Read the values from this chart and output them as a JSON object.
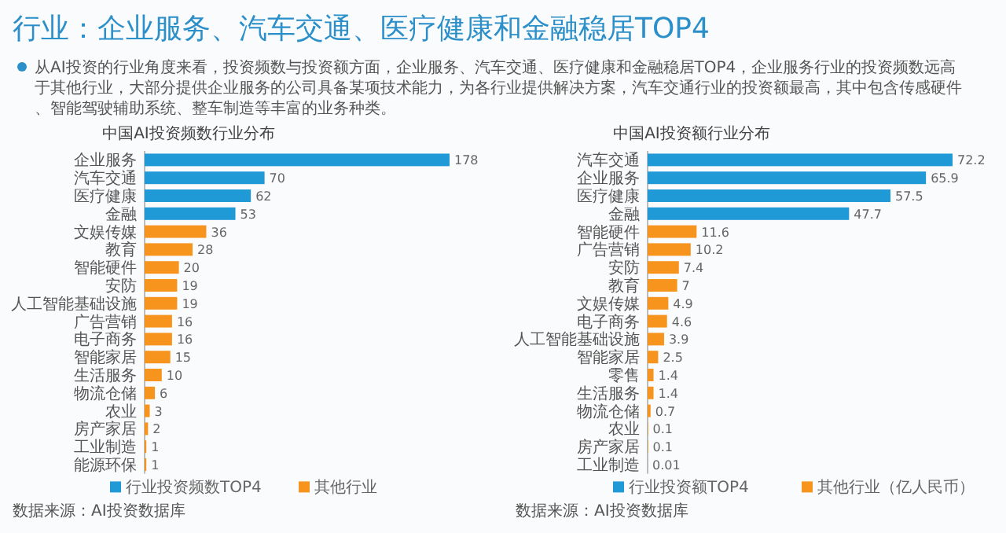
{
  "chart_data": [
    {
      "type": "other",
      "title": "行业：企业服务、汽车交通、医疗健康和金融稳居TOP4",
      "annotations": [
        "从AI投资的行业角度来看，投资频数与投资额方面，企业服务、汽车交通、医疗健康和金融稳居TOP4，企业服务行业的投资频数远高于其他行业，大部分提供企业服务的公司具备某项技术能力，为各行业提供解决方案，汽车交通行业的投资额最高，其中包含传感硬件、智能驾驶辅助系统、整车制造等丰富的业务种类。"
      ]
    },
    {
      "type": "bar",
      "orientation": "horizontal",
      "stacked": true,
      "title": "中国AI投资频数行业分布",
      "categories": [
        "企业服务",
        "汽车交通",
        "医疗健康",
        "金融",
        "文娱传媒",
        "教育",
        "智能硬件",
        "安防",
        "人工智能基础设施",
        "广告营销",
        "电子商务",
        "智能家居",
        "生活服务",
        "物流仓储",
        "农业",
        "房产家居",
        "工业制造",
        "能源环保"
      ],
      "series": [
        {
          "name": "行业投资频数TOP4",
          "color": "#1f9ad6",
          "values": [
            178,
            70,
            62,
            53,
            null,
            null,
            null,
            null,
            null,
            null,
            null,
            null,
            null,
            null,
            null,
            null,
            null,
            null
          ]
        },
        {
          "name": "其他行业",
          "color": "#f7941d",
          "values": [
            null,
            null,
            null,
            null,
            36,
            28,
            20,
            19,
            19,
            16,
            16,
            15,
            10,
            6,
            3,
            2,
            1,
            1
          ]
        }
      ],
      "data_labels": true,
      "legend": "bottom",
      "tick_labels": "y",
      "annotations": [
        "数据来源：AI投资数据库"
      ]
    },
    {
      "type": "bar",
      "orientation": "horizontal",
      "stacked": true,
      "title": "中国AI投资额行业分布",
      "categories": [
        "汽车交通",
        "企业服务",
        "医疗健康",
        "金融",
        "智能硬件",
        "广告营销",
        "安防",
        "教育",
        "文娱传媒",
        "电子商务",
        "人工智能基础设施",
        "智能家居",
        "零售",
        "生活服务",
        "物流仓储",
        "农业",
        "房产家居",
        "工业制造"
      ],
      "series": [
        {
          "name": "行业投资额TOP4",
          "color": "#1f9ad6",
          "values": [
            72.2,
            65.9,
            57.5,
            47.7,
            null,
            null,
            null,
            null,
            null,
            null,
            null,
            null,
            null,
            null,
            null,
            null,
            null,
            null
          ]
        },
        {
          "name": "其他行业（亿人民币）",
          "color": "#f7941d",
          "values": [
            null,
            null,
            null,
            null,
            11.6,
            10.2,
            7.4,
            7.0,
            4.9,
            4.6,
            3.9,
            2.5,
            1.4,
            1.4,
            0.7,
            0.1,
            0.1,
            0.01
          ]
        }
      ],
      "data_labels": true,
      "legend": "bottom",
      "tick_labels": "y",
      "annotations": [
        "数据来源：AI投资数据库"
      ]
    }
  ]
}
